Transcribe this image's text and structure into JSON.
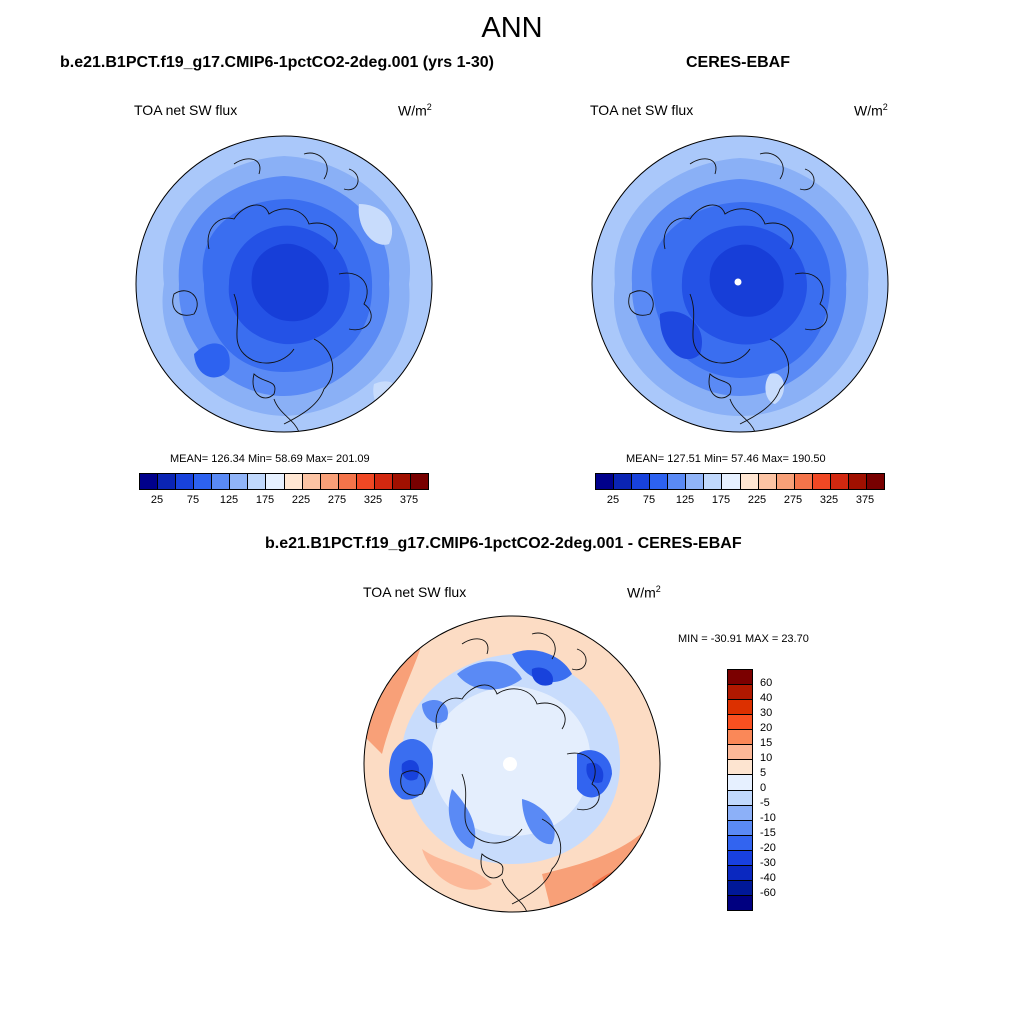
{
  "title": "ANN",
  "panels": [
    {
      "title": "b.e21.B1PCT.f19_g17.CMIP6-1pctCO2-2deg.001 (yrs 1-30)",
      "variable": "TOA net SW flux",
      "units_base": "W/m",
      "units_sup": "2",
      "stats": "MEAN= 126.34  Min=  58.69  Max= 201.09"
    },
    {
      "title": "CERES-EBAF",
      "variable": "TOA net SW flux",
      "units_base": "W/m",
      "units_sup": "2",
      "stats": "MEAN= 127.51  Min=  57.46  Max= 190.50"
    },
    {
      "title": "b.e21.B1PCT.f19_g17.CMIP6-1pctCO2-2deg.001 - CERES-EBAF",
      "variable": "TOA net SW flux",
      "units_base": "W/m",
      "units_sup": "2",
      "stats": "MIN = -30.91 MAX =  23.70"
    }
  ],
  "colorbar_abs": {
    "colors": [
      "#00008b",
      "#0a24b4",
      "#1842dc",
      "#2d62f0",
      "#5a8af5",
      "#90b4f8",
      "#c0d8fc",
      "#e6f0ff",
      "#ffe6d2",
      "#fcc4a4",
      "#f8a078",
      "#f4744a",
      "#f04824",
      "#d22810",
      "#a01000",
      "#780000"
    ],
    "labels": [
      "25",
      "75",
      "125",
      "175",
      "225",
      "275",
      "325",
      "375"
    ]
  },
  "colorbar_diff": {
    "colors": [
      "#7b0000",
      "#b01800",
      "#dc3000",
      "#fa5020",
      "#fa8858",
      "#fcb898",
      "#fde4d0",
      "#e6f0ff",
      "#c0d8fc",
      "#8cb0f8",
      "#5a8af5",
      "#3264f0",
      "#1840e0",
      "#0a28c0",
      "#001898",
      "#000080"
    ],
    "labels": [
      "60",
      "40",
      "30",
      "20",
      "15",
      "10",
      "5",
      "0",
      "-5",
      "-10",
      "-15",
      "-20",
      "-30",
      "-40",
      "-60"
    ]
  }
}
